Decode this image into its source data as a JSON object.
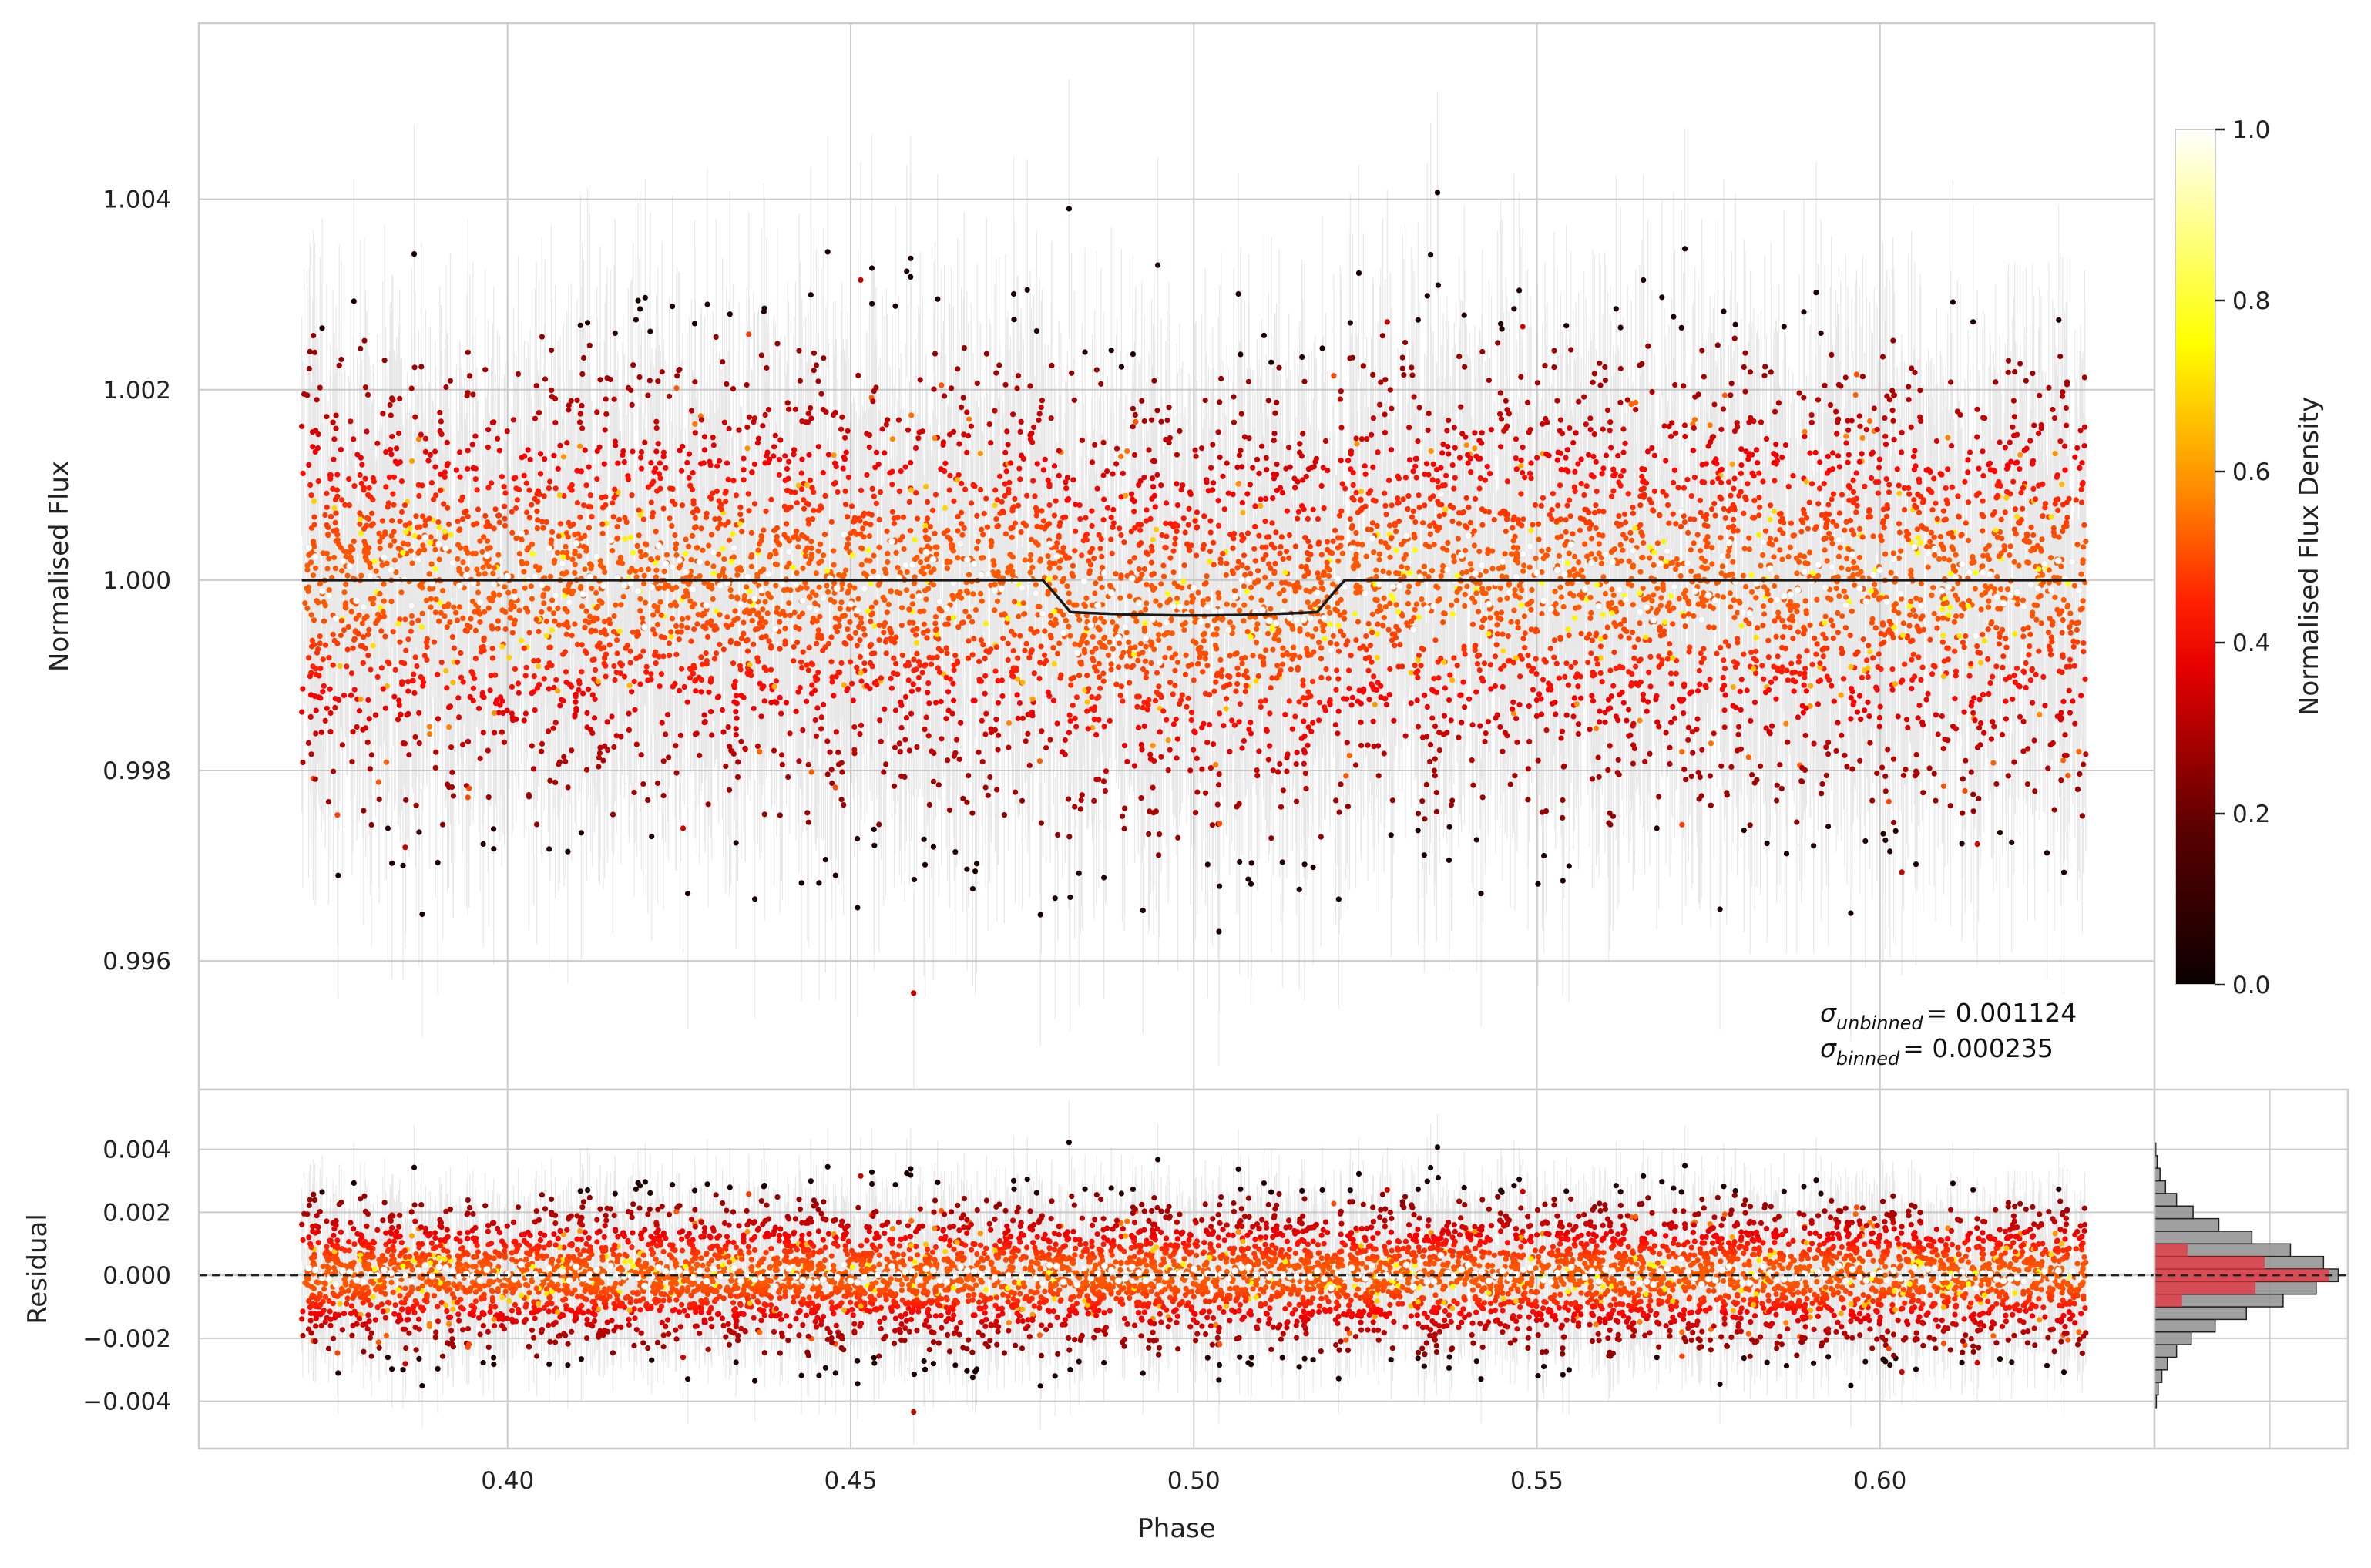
{
  "chart_data": [
    {
      "type": "scatter",
      "panel": "main light curve",
      "xlabel": "Phase",
      "ylabel": "Normalised Flux",
      "xlim": [
        0.355,
        0.64
      ],
      "ylim": [
        0.99465,
        1.00585
      ],
      "x_ticks": [
        "0.40",
        "0.45",
        "0.50",
        "0.55",
        "0.60"
      ],
      "y_ticks": [
        "0.996",
        "0.998",
        "1.000",
        "1.002",
        "1.004"
      ],
      "grid": true,
      "data_summary": {
        "phase_range": [
          0.37,
          0.63
        ],
        "flux_center": 1.0,
        "flux_scatter_std": 0.001124,
        "typical_errorbar": 0.0012
      },
      "series": [
        {
          "description": "transit model",
          "model": {
            "baseline": 1.0,
            "ingress_start": 0.478,
            "ingress_end": 0.482,
            "egress_start": 0.518,
            "egress_end": 0.522,
            "depth": 0.00037
          }
        },
        {
          "description": "binned flux",
          "bin_width": 0.002,
          "level": 1.0,
          "in_transit_level": 0.99962
        }
      ],
      "annotations": [
        {
          "symbol": "σ",
          "subscript": "unbinned",
          "value": "= 0.001124"
        },
        {
          "symbol": "σ",
          "subscript": "binned",
          "value": "= 0.000235"
        }
      ]
    },
    {
      "type": "scatter",
      "panel": "residuals",
      "xlabel": "Phase",
      "ylabel": "Residual",
      "xlim": [
        0.355,
        0.64
      ],
      "ylim": [
        -0.0055,
        0.0059
      ],
      "x_ticks": [
        "0.40",
        "0.45",
        "0.50",
        "0.55",
        "0.60"
      ],
      "y_ticks": [
        "−0.004",
        "−0.002",
        "0.000",
        "0.002",
        "0.004"
      ],
      "zero_line": 0.0,
      "residual_scatter_std": 0.00112
    },
    {
      "type": "histogram",
      "panel": "residual histogram",
      "orientation": "horizontal",
      "bins_center": [
        -0.004,
        -0.0036,
        -0.0032,
        -0.0028,
        -0.0024,
        -0.002,
        -0.0016,
        -0.0012,
        -0.0008,
        -0.0004,
        0.0,
        0.0004,
        0.0008,
        0.0012,
        0.0016,
        0.002,
        0.0024,
        0.0028,
        0.0032,
        0.0036,
        0.004
      ],
      "all_counts_relative": [
        0.01,
        0.02,
        0.04,
        0.07,
        0.12,
        0.2,
        0.33,
        0.5,
        0.7,
        0.88,
        1.0,
        0.92,
        0.74,
        0.53,
        0.35,
        0.21,
        0.12,
        0.06,
        0.03,
        0.015,
        0.007
      ],
      "binned_counts_relative": [
        0,
        0,
        0,
        0,
        0,
        0,
        0,
        0,
        0.15,
        0.55,
        0.95,
        0.6,
        0.18,
        0,
        0,
        0,
        0,
        0,
        0,
        0,
        0
      ],
      "colors": {
        "all": "#8f8f8f",
        "binned": "#e8323c"
      }
    },
    {
      "type": "colorbar",
      "label": "Normalised Flux Density",
      "range": [
        0.0,
        1.0
      ],
      "ticks": [
        "0.0",
        "0.2",
        "0.4",
        "0.6",
        "0.8",
        "1.0"
      ],
      "colormap": "hot"
    }
  ],
  "colors": {
    "errorbar": "#bdbdbd",
    "model_line": "#1a1a1a",
    "grid": "#cccccc",
    "zero_line": "#222222"
  }
}
